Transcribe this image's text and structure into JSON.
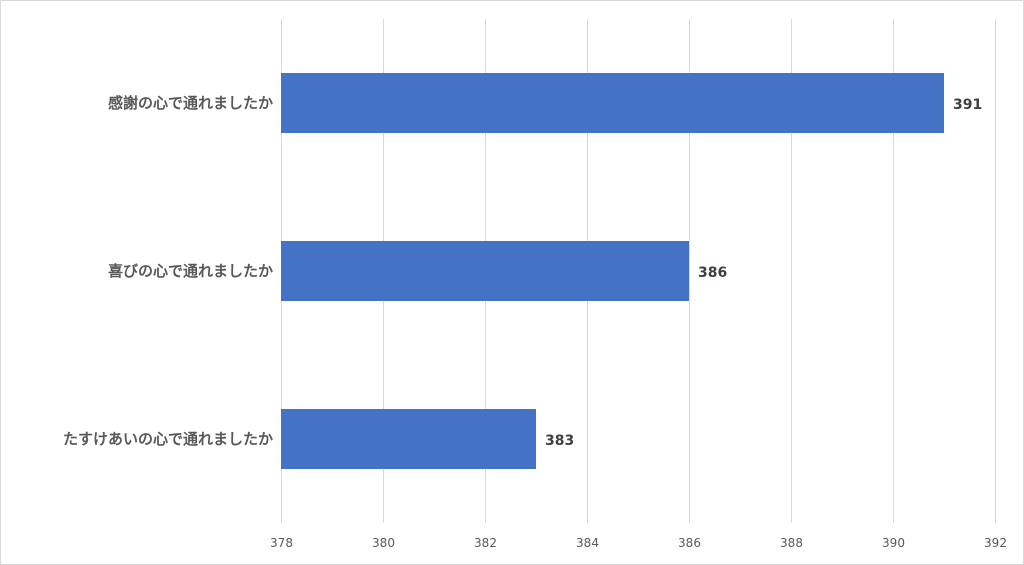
{
  "chart_data": {
    "type": "bar",
    "orientation": "horizontal",
    "categories": [
      "感謝の心で通れましたか",
      "喜びの心で通れましたか",
      "たすけあいの心で通れましたか"
    ],
    "values": [
      391,
      386,
      383
    ],
    "data_labels": [
      "391",
      "386",
      "383"
    ],
    "xlim": [
      378,
      392
    ],
    "x_ticks": [
      "378",
      "380",
      "382",
      "384",
      "386",
      "388",
      "390",
      "392"
    ],
    "bar_color": "#4472c4",
    "grid": "vertical",
    "legend": "none",
    "title": "",
    "xlabel": "",
    "ylabel": ""
  }
}
